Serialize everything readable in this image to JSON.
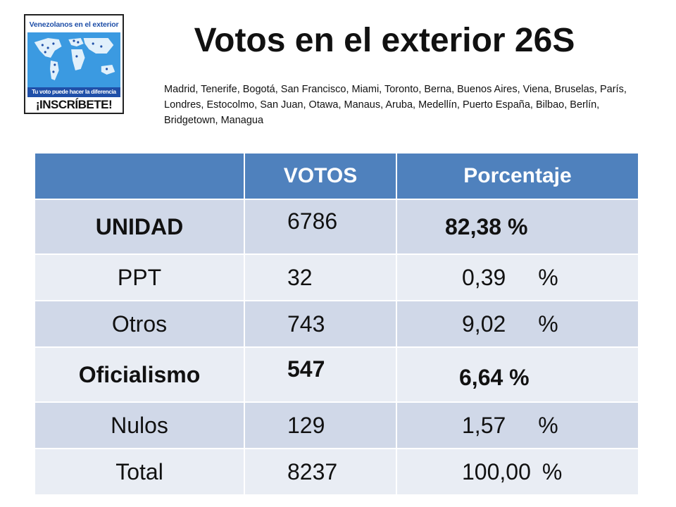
{
  "logo": {
    "top_text": "Venezolanos en el exterior",
    "bar_text": "Tu voto puede hacer la diferencia",
    "cta_text": "¡INSCRÍBETE!"
  },
  "title": "Votos en el exterior 26S",
  "cities": "Madrid, Tenerife, Bogotá, San Francisco, Miami, Toronto, Berna,   Buenos Aires, Viena, Bruselas, París, Londres, Estocolmo, San Juan, Otawa, Manaus, Aruba, Medellín, Puerto España, Bilbao, Berlín,  Bridgetown, Managua",
  "table": {
    "headers": [
      "",
      "VOTOS",
      "Porcentaje"
    ],
    "rows": [
      {
        "label": "UNIDAD",
        "votes": "6786",
        "pct": "82,38 %"
      },
      {
        "label": "PPT",
        "votes": "32",
        "pct_value": "0,39",
        "pct_sign": "%"
      },
      {
        "label": "Otros",
        "votes": "743",
        "pct_value": "9,02",
        "pct_sign": "%"
      },
      {
        "label": "Oficialismo",
        "votes": "547",
        "pct": "6,64 %"
      },
      {
        "label": "Nulos",
        "votes": "129",
        "pct_value": "1,57",
        "pct_sign": "%"
      },
      {
        "label": "Total",
        "votes": "8237",
        "pct_value": "100,00",
        "pct_sign": "%"
      }
    ]
  },
  "colors": {
    "header_blue": "#4f81bd",
    "row_dark": "#d0d8e8",
    "row_light": "#e9edf4",
    "unidad_blue": "#1f4e8c",
    "oficialismo_red": "#c00000"
  }
}
